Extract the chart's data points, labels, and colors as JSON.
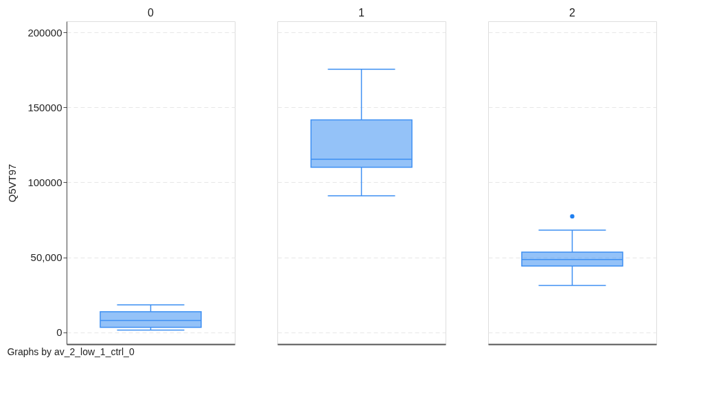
{
  "chart_data": {
    "type": "box",
    "categories": [
      "0",
      "1",
      "2"
    ],
    "ylabel": "Q5VT97",
    "ylim": [
      -8000,
      207500
    ],
    "yticks": [
      0,
      {
        "value": 50000,
        "label": "50,000"
      },
      100000,
      150000,
      200000
    ],
    "grid": "y",
    "series": [
      {
        "color": "#3d8ff2",
        "boxes": [
          {
            "low": 1400,
            "q1": 3200,
            "median": 7800,
            "q3": 13700,
            "high": 18300
          },
          {
            "low": 91000,
            "q1": 110100,
            "median": 115400,
            "q3": 141700,
            "high": 175500
          },
          {
            "low": 31200,
            "q1": 44200,
            "median": 48500,
            "q3": 53400,
            "high": 68100,
            "outliers": [
              77300
            ]
          }
        ]
      }
    ],
    "annotations": [
      "Graphs by av_2_low_1_ctrl_0"
    ]
  }
}
